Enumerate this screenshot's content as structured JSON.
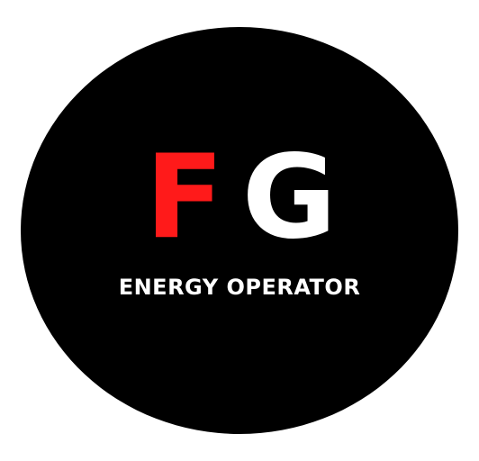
{
  "logo": {
    "letter_1": "F",
    "letter_2": "G",
    "tagline": "ENERGY OPERATOR"
  },
  "colors": {
    "background": "#ffffff",
    "disc": "#000000",
    "letter_1": "#ff1a1a",
    "letter_2": "#ffffff",
    "tagline": "#ffffff"
  }
}
